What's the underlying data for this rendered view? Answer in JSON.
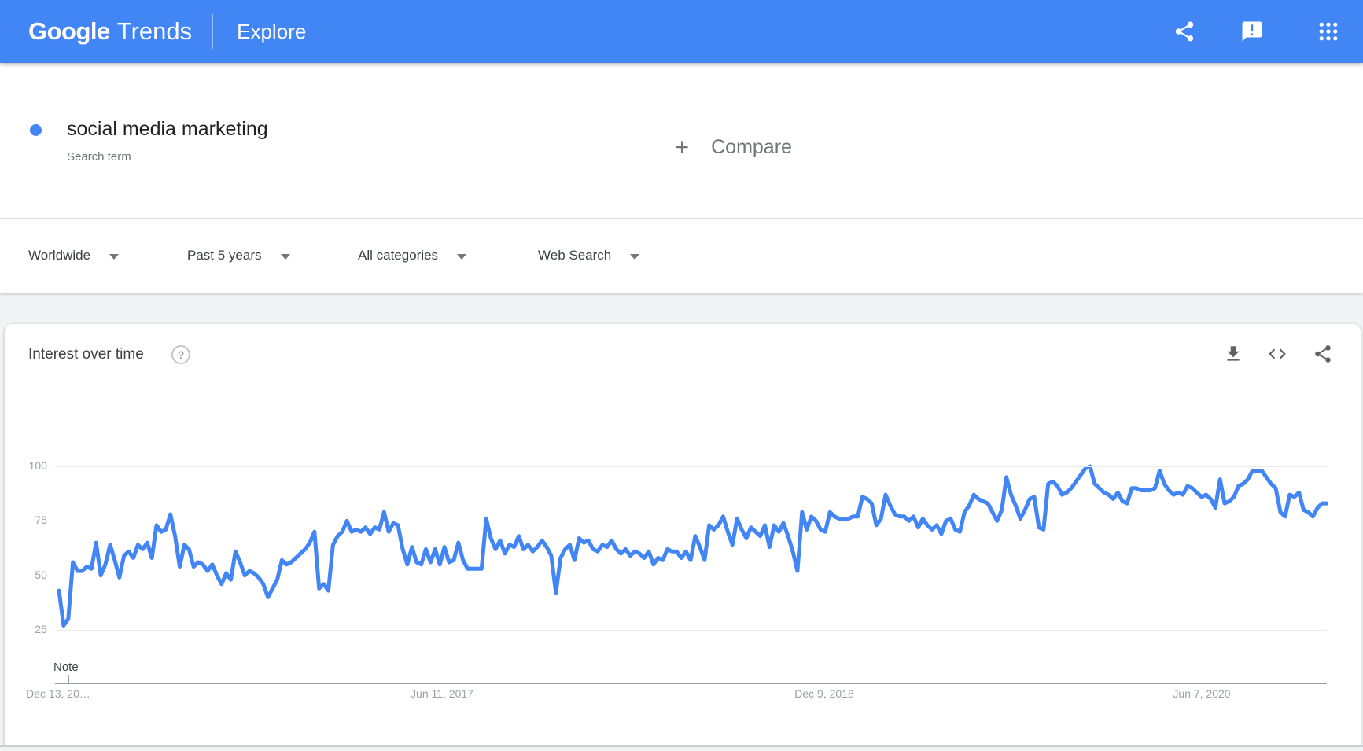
{
  "header": {
    "logo_google": "Google",
    "logo_trends": "Trends",
    "page_title": "Explore",
    "icons": [
      "share-icon",
      "feedback-icon",
      "apps-grid-icon"
    ],
    "background_color": "#4285f4"
  },
  "term_card": {
    "term": "social media marketing",
    "type_label": "Search term",
    "dot_color": "#4285f4"
  },
  "compare_card": {
    "plus": "+",
    "label": "Compare"
  },
  "filters": [
    {
      "label": "Worldwide"
    },
    {
      "label": "Past 5 years"
    },
    {
      "label": "All categories"
    },
    {
      "label": "Web Search"
    }
  ],
  "chart_card": {
    "title": "Interest over time",
    "help_glyph": "?",
    "actions": [
      "download-icon",
      "embed-code-icon",
      "share-icon"
    ]
  },
  "chart_data": {
    "type": "line",
    "title": "Interest over time",
    "series_name": "social media marketing",
    "line_color": "#4285f4",
    "grid": true,
    "legend": "none",
    "ylim": [
      0,
      100
    ],
    "y_ticks": [
      100,
      75,
      50,
      25
    ],
    "x_tick_labels": [
      "Dec 13, 20…",
      "Jun 11, 2017",
      "Dec 9, 2018",
      "Jun 7, 2020"
    ],
    "x_range_description": "Weekly points, Dec 13 2015 to Dec 2020",
    "note_label": "Note",
    "values": [
      43,
      27,
      30,
      56,
      52,
      52,
      54,
      53,
      65,
      50,
      55,
      64,
      57,
      49,
      59,
      61,
      58,
      64,
      62,
      65,
      58,
      73,
      70,
      71,
      78,
      68,
      54,
      64,
      62,
      54,
      56,
      55,
      52,
      55,
      50,
      46,
      51,
      48,
      61,
      56,
      50,
      52,
      51,
      49,
      46,
      40,
      44,
      48,
      57,
      55,
      56,
      58,
      60,
      62,
      65,
      70,
      44,
      46,
      43,
      64,
      68,
      70,
      75,
      70,
      71,
      70,
      72,
      69,
      72,
      71,
      79,
      70,
      74,
      73,
      62,
      55,
      63,
      56,
      55,
      62,
      56,
      62,
      55,
      63,
      56,
      57,
      65,
      57,
      53,
      53,
      53,
      53,
      76,
      67,
      62,
      66,
      60,
      64,
      63,
      68,
      62,
      64,
      61,
      63,
      66,
      63,
      59,
      42,
      58,
      62,
      64,
      57,
      67,
      65,
      66,
      62,
      61,
      64,
      63,
      66,
      62,
      60,
      62,
      59,
      61,
      60,
      58,
      61,
      55,
      58,
      57,
      62,
      61,
      61,
      58,
      61,
      57,
      68,
      63,
      57,
      73,
      71,
      73,
      77,
      70,
      64,
      76,
      71,
      67,
      72,
      70,
      68,
      73,
      63,
      73,
      70,
      74,
      68,
      61,
      52,
      79,
      71,
      77,
      75,
      71,
      70,
      79,
      77,
      76,
      76,
      76,
      77,
      77,
      86,
      85,
      83,
      73,
      76,
      87,
      82,
      78,
      77,
      77,
      75,
      77,
      72,
      76,
      73,
      71,
      73,
      69,
      75,
      76,
      71,
      70,
      79,
      82,
      87,
      85,
      84,
      83,
      79,
      75,
      80,
      95,
      87,
      82,
      76,
      80,
      85,
      86,
      72,
      71,
      92,
      93,
      91,
      87,
      88,
      90,
      93,
      96,
      99,
      100,
      92,
      90,
      88,
      87,
      85,
      88,
      84,
      83,
      90,
      90,
      89,
      89,
      89,
      90,
      98,
      92,
      89,
      87,
      88,
      87,
      91,
      90,
      88,
      86,
      87,
      85,
      81,
      94,
      83,
      84,
      86,
      91,
      92,
      94,
      98,
      98,
      98,
      95,
      92,
      90,
      79,
      77,
      87,
      86,
      88,
      80,
      79,
      77,
      81,
      83,
      83
    ]
  }
}
